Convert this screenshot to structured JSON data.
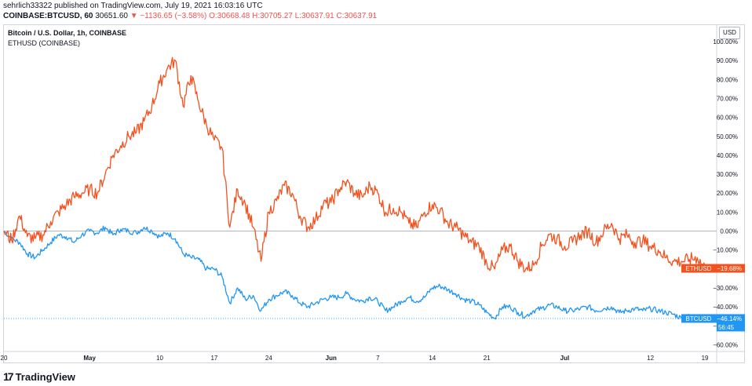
{
  "header": {
    "published": "sehrlich33322 published on TradingView.com, July 19, 2021 16:03:16 UTC",
    "symbol": "COINBASE:BTCUSD, 60",
    "price": "30651.60",
    "change": "▼ −1136.65 (−3.58%)",
    "open": "O:30668.48",
    "high": "H:30705.27",
    "low": "L:30637.91",
    "close": "C:30637.91"
  },
  "legend": {
    "main": "Bitcoin / U.S. Dollar, 1h, COINBASE",
    "compare": "ETHUSD (COINBASE)"
  },
  "currency_button": "USD",
  "footer": {
    "brand": "TradingView"
  },
  "colors": {
    "eth": "#f4511e",
    "btc": "#2196f3",
    "grid_zero": "#b2b5be",
    "text": "#131722"
  },
  "chart_data": {
    "type": "line",
    "title": "Bitcoin / U.S. Dollar, 1h, COINBASE",
    "ylabel": "",
    "xlabel": "",
    "y_unit": "%",
    "ylim": [
      -65,
      105
    ],
    "y_ticks": [
      "100.00%",
      "90.00%",
      "80.00%",
      "70.00%",
      "60.00%",
      "50.00%",
      "40.00%",
      "30.00%",
      "20.00%",
      "10.00%",
      "0.00%",
      "−10.00%",
      "−20.00%",
      "−30.00%",
      "−40.00%",
      "−50.00%",
      "−60.00%"
    ],
    "y_tick_values": [
      100,
      90,
      80,
      70,
      60,
      50,
      40,
      30,
      20,
      10,
      0,
      -10,
      -20,
      -30,
      -40,
      -50,
      -60
    ],
    "x_ticks": [
      {
        "label": "20",
        "x": "2021-04-20"
      },
      {
        "label": "May",
        "x": "2021-05-01"
      },
      {
        "label": "10",
        "x": "2021-05-10"
      },
      {
        "label": "17",
        "x": "2021-05-17"
      },
      {
        "label": "24",
        "x": "2021-05-24"
      },
      {
        "label": "Jun",
        "x": "2021-06-01"
      },
      {
        "label": "7",
        "x": "2021-06-07"
      },
      {
        "label": "14",
        "x": "2021-06-14"
      },
      {
        "label": "21",
        "x": "2021-06-21"
      },
      {
        "label": "Jul",
        "x": "2021-07-01"
      },
      {
        "label": "12",
        "x": "2021-07-12"
      },
      {
        "label": "19",
        "x": "2021-07-19"
      }
    ],
    "x_range": [
      "2021-04-20",
      "2021-07-20"
    ],
    "series": [
      {
        "name": "ETHUSD",
        "last_label": "−19.68%",
        "points": [
          [
            "2021-04-20",
            0
          ],
          [
            "2021-04-21",
            -5
          ],
          [
            "2021-04-22",
            8
          ],
          [
            "2021-04-23",
            -3
          ],
          [
            "2021-04-24",
            -4
          ],
          [
            "2021-04-25",
            -2
          ],
          [
            "2021-04-26",
            5
          ],
          [
            "2021-04-27",
            10
          ],
          [
            "2021-04-28",
            14
          ],
          [
            "2021-04-29",
            18
          ],
          [
            "2021-04-30",
            20
          ],
          [
            "2021-05-01",
            22
          ],
          [
            "2021-05-02",
            20
          ],
          [
            "2021-05-03",
            30
          ],
          [
            "2021-05-04",
            40
          ],
          [
            "2021-05-05",
            45
          ],
          [
            "2021-05-06",
            50
          ],
          [
            "2021-05-07",
            52
          ],
          [
            "2021-05-08",
            58
          ],
          [
            "2021-05-09",
            66
          ],
          [
            "2021-05-10",
            78
          ],
          [
            "2021-05-11",
            86
          ],
          [
            "2021-05-12",
            90
          ],
          [
            "2021-05-13",
            66
          ],
          [
            "2021-05-14",
            82
          ],
          [
            "2021-05-15",
            68
          ],
          [
            "2021-05-16",
            56
          ],
          [
            "2021-05-17",
            48
          ],
          [
            "2021-05-18",
            44
          ],
          [
            "2021-05-19",
            2
          ],
          [
            "2021-05-20",
            22
          ],
          [
            "2021-05-21",
            14
          ],
          [
            "2021-05-22",
            2
          ],
          [
            "2021-05-23",
            -16
          ],
          [
            "2021-05-24",
            10
          ],
          [
            "2021-05-25",
            16
          ],
          [
            "2021-05-26",
            24
          ],
          [
            "2021-05-27",
            20
          ],
          [
            "2021-05-28",
            8
          ],
          [
            "2021-05-29",
            2
          ],
          [
            "2021-05-30",
            6
          ],
          [
            "2021-05-31",
            14
          ],
          [
            "2021-06-01",
            15
          ],
          [
            "2021-06-02",
            22
          ],
          [
            "2021-06-03",
            26
          ],
          [
            "2021-06-04",
            20
          ],
          [
            "2021-06-05",
            18
          ],
          [
            "2021-06-06",
            24
          ],
          [
            "2021-06-07",
            20
          ],
          [
            "2021-06-08",
            10
          ],
          [
            "2021-06-09",
            12
          ],
          [
            "2021-06-10",
            10
          ],
          [
            "2021-06-11",
            4
          ],
          [
            "2021-06-12",
            2
          ],
          [
            "2021-06-13",
            10
          ],
          [
            "2021-06-14",
            14
          ],
          [
            "2021-06-15",
            11
          ],
          [
            "2021-06-16",
            4
          ],
          [
            "2021-06-17",
            2
          ],
          [
            "2021-06-18",
            -2
          ],
          [
            "2021-06-19",
            -6
          ],
          [
            "2021-06-20",
            -8
          ],
          [
            "2021-06-21",
            -17
          ],
          [
            "2021-06-22",
            -20
          ],
          [
            "2021-06-23",
            -10
          ],
          [
            "2021-06-24",
            -8
          ],
          [
            "2021-06-25",
            -16
          ],
          [
            "2021-06-26",
            -20
          ],
          [
            "2021-06-27",
            -18
          ],
          [
            "2021-06-28",
            -8
          ],
          [
            "2021-06-29",
            -2
          ],
          [
            "2021-06-30",
            -4
          ],
          [
            "2021-07-01",
            -8
          ],
          [
            "2021-07-02",
            -6
          ],
          [
            "2021-07-03",
            -2
          ],
          [
            "2021-07-04",
            0
          ],
          [
            "2021-07-05",
            -6
          ],
          [
            "2021-07-06",
            0
          ],
          [
            "2021-07-07",
            4
          ],
          [
            "2021-07-08",
            -4
          ],
          [
            "2021-07-09",
            -2
          ],
          [
            "2021-07-10",
            -6
          ],
          [
            "2021-07-11",
            -5
          ],
          [
            "2021-07-12",
            -8
          ],
          [
            "2021-07-13",
            -10
          ],
          [
            "2021-07-14",
            -14
          ],
          [
            "2021-07-15",
            -16
          ],
          [
            "2021-07-16",
            -16
          ],
          [
            "2021-07-17",
            -15
          ],
          [
            "2021-07-18",
            -14
          ],
          [
            "2021-07-19",
            -19.68
          ]
        ]
      },
      {
        "name": "BTCUSD",
        "last_label": "−46.14%",
        "countdown": "56:45",
        "points": [
          [
            "2021-04-20",
            0
          ],
          [
            "2021-04-21",
            -4
          ],
          [
            "2021-04-22",
            -6
          ],
          [
            "2021-04-23",
            -12
          ],
          [
            "2021-04-24",
            -14
          ],
          [
            "2021-04-25",
            -10
          ],
          [
            "2021-04-26",
            -6
          ],
          [
            "2021-04-27",
            -2
          ],
          [
            "2021-04-28",
            -3
          ],
          [
            "2021-04-29",
            -6
          ],
          [
            "2021-04-30",
            -2
          ],
          [
            "2021-05-01",
            0
          ],
          [
            "2021-05-02",
            -1
          ],
          [
            "2021-05-03",
            2
          ],
          [
            "2021-05-04",
            -2
          ],
          [
            "2021-05-05",
            1
          ],
          [
            "2021-05-06",
            0
          ],
          [
            "2021-05-07",
            -1
          ],
          [
            "2021-05-08",
            2
          ],
          [
            "2021-05-09",
            0
          ],
          [
            "2021-05-10",
            -3
          ],
          [
            "2021-05-11",
            -1
          ],
          [
            "2021-05-12",
            -4
          ],
          [
            "2021-05-13",
            -12
          ],
          [
            "2021-05-14",
            -14
          ],
          [
            "2021-05-15",
            -15
          ],
          [
            "2021-05-16",
            -20
          ],
          [
            "2021-05-17",
            -20
          ],
          [
            "2021-05-18",
            -24
          ],
          [
            "2021-05-19",
            -38
          ],
          [
            "2021-05-20",
            -30
          ],
          [
            "2021-05-21",
            -36
          ],
          [
            "2021-05-22",
            -34
          ],
          [
            "2021-05-23",
            -42
          ],
          [
            "2021-05-24",
            -36
          ],
          [
            "2021-05-25",
            -34
          ],
          [
            "2021-05-26",
            -32
          ],
          [
            "2021-05-27",
            -34
          ],
          [
            "2021-05-28",
            -38
          ],
          [
            "2021-05-29",
            -40
          ],
          [
            "2021-05-30",
            -38
          ],
          [
            "2021-05-31",
            -36
          ],
          [
            "2021-06-01",
            -35
          ],
          [
            "2021-06-02",
            -35
          ],
          [
            "2021-06-03",
            -33
          ],
          [
            "2021-06-04",
            -36
          ],
          [
            "2021-06-05",
            -37
          ],
          [
            "2021-06-06",
            -35
          ],
          [
            "2021-06-07",
            -37
          ],
          [
            "2021-06-08",
            -42
          ],
          [
            "2021-06-09",
            -40
          ],
          [
            "2021-06-10",
            -37
          ],
          [
            "2021-06-11",
            -35
          ],
          [
            "2021-06-12",
            -37
          ],
          [
            "2021-06-13",
            -35
          ],
          [
            "2021-06-14",
            -30
          ],
          [
            "2021-06-15",
            -29
          ],
          [
            "2021-06-16",
            -31
          ],
          [
            "2021-06-17",
            -33
          ],
          [
            "2021-06-18",
            -36
          ],
          [
            "2021-06-19",
            -37
          ],
          [
            "2021-06-20",
            -39
          ],
          [
            "2021-06-21",
            -43
          ],
          [
            "2021-06-22",
            -46
          ],
          [
            "2021-06-23",
            -40
          ],
          [
            "2021-06-24",
            -40
          ],
          [
            "2021-06-25",
            -43
          ],
          [
            "2021-06-26",
            -45
          ],
          [
            "2021-06-27",
            -42
          ],
          [
            "2021-06-28",
            -41
          ],
          [
            "2021-06-29",
            -39
          ],
          [
            "2021-06-30",
            -40
          ],
          [
            "2021-07-01",
            -42
          ],
          [
            "2021-07-02",
            -42
          ],
          [
            "2021-07-03",
            -41
          ],
          [
            "2021-07-04",
            -40
          ],
          [
            "2021-07-05",
            -42
          ],
          [
            "2021-07-06",
            -41
          ],
          [
            "2021-07-07",
            -40
          ],
          [
            "2021-07-08",
            -43
          ],
          [
            "2021-07-09",
            -42
          ],
          [
            "2021-07-10",
            -41
          ],
          [
            "2021-07-11",
            -42
          ],
          [
            "2021-07-12",
            -41
          ],
          [
            "2021-07-13",
            -42
          ],
          [
            "2021-07-14",
            -43
          ],
          [
            "2021-07-15",
            -44
          ],
          [
            "2021-07-16",
            -46
          ],
          [
            "2021-07-17",
            -45
          ],
          [
            "2021-07-18",
            -45
          ],
          [
            "2021-07-19",
            -46.14
          ]
        ]
      }
    ],
    "legend_position": "top-left",
    "grid": false
  }
}
